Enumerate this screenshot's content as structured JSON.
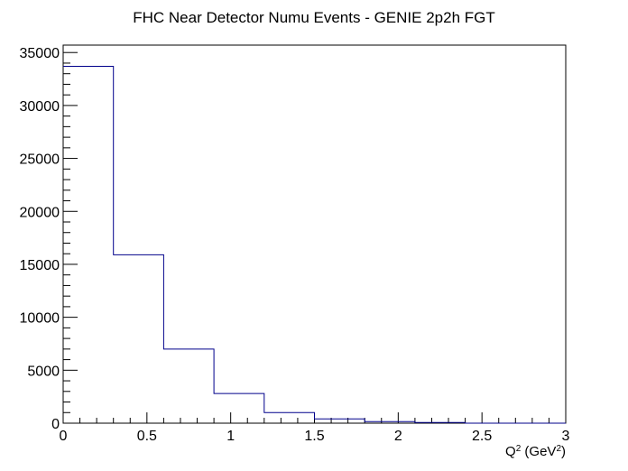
{
  "chart_data": {
    "type": "histogram",
    "title": "FHC Near Detector Numu Events - GENIE 2p2h FGT",
    "xlabel": "Q",
    "xlabel_sup": "2",
    "xlabel_unit": " (GeV",
    "xlabel_unit_sup": "2",
    "xlabel_close": ")",
    "xlim": [
      0,
      3
    ],
    "ylim": [
      0,
      35700
    ],
    "x_ticks": [
      "0",
      "0.5",
      "1",
      "1.5",
      "2",
      "2.5",
      "3"
    ],
    "x_tick_values": [
      0,
      0.5,
      1,
      1.5,
      2,
      2.5,
      3
    ],
    "y_ticks": [
      "0",
      "5000",
      "10000",
      "15000",
      "20000",
      "25000",
      "30000",
      "35000"
    ],
    "y_tick_values": [
      0,
      5000,
      10000,
      15000,
      20000,
      25000,
      30000,
      35000
    ],
    "bin_edges": [
      0,
      0.3,
      0.6,
      0.9,
      1.2,
      1.5,
      1.8,
      2.1,
      2.4,
      2.7,
      3.0
    ],
    "bin_values": [
      33700,
      15900,
      7000,
      2800,
      1000,
      400,
      150,
      60,
      0,
      0
    ],
    "line_color": "#00008b"
  }
}
